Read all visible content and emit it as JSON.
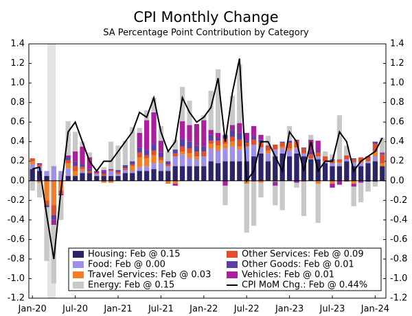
{
  "chart_data": {
    "type": "bar",
    "title": "CPI Monthly Change",
    "subtitle": "SA Percentage Point Contribution by Category",
    "categories": [
      "Jan-20",
      null,
      null,
      null,
      null,
      null,
      "Jul-20",
      null,
      null,
      null,
      null,
      null,
      "Jan-21",
      null,
      null,
      null,
      null,
      null,
      "Jul-21",
      null,
      null,
      null,
      null,
      null,
      "Jan-22",
      null,
      null,
      null,
      null,
      null,
      "Jul-22",
      null,
      null,
      null,
      null,
      null,
      "Jan-23",
      null,
      null,
      null,
      null,
      null,
      "Jul-23",
      null,
      null,
      null,
      null,
      null,
      "Jan-24",
      null
    ],
    "ylim": [
      -1.2,
      1.4
    ],
    "yticks": [
      {
        "value": -1.2,
        "label": "-1.2"
      },
      {
        "value": -1.0,
        "label": "-1.0"
      },
      -0.8,
      -0.6,
      -0.4,
      -0.2,
      {
        "value": 0,
        "label": "0.0"
      },
      0.2,
      0.4,
      0.6,
      0.8,
      {
        "value": 1.0,
        "label": "1.0"
      },
      1.2,
      1.4
    ],
    "stacked": true,
    "series": [
      {
        "name": "Housing: Feb @ 0.15",
        "color": "#2b2466",
        "values": [
          0.12,
          0.1,
          0.05,
          0.0,
          0.0,
          0.05,
          0.05,
          0.08,
          0.08,
          0.05,
          0.05,
          0.05,
          0.05,
          0.08,
          0.08,
          0.1,
          0.1,
          0.12,
          0.1,
          0.1,
          0.15,
          0.15,
          0.15,
          0.15,
          0.15,
          0.2,
          0.18,
          0.2,
          0.2,
          0.2,
          0.2,
          0.25,
          0.28,
          0.2,
          0.25,
          0.28,
          0.25,
          0.28,
          0.25,
          0.22,
          0.22,
          0.18,
          0.15,
          0.15,
          0.2,
          0.15,
          0.15,
          0.18,
          0.2,
          0.15
        ]
      },
      {
        "name": "Food: Feb @ 0.00",
        "color": "#9f8fe8",
        "values": [
          0.05,
          0.05,
          0.05,
          0.15,
          0.1,
          0.08,
          0.0,
          0.02,
          0.0,
          0.02,
          0.0,
          0.05,
          0.02,
          0.03,
          0.02,
          0.04,
          0.05,
          0.06,
          0.08,
          0.05,
          0.1,
          0.12,
          0.08,
          0.07,
          0.1,
          0.13,
          0.13,
          0.13,
          0.15,
          0.12,
          0.15,
          0.12,
          0.06,
          0.08,
          0.07,
          0.05,
          0.06,
          0.05,
          0.03,
          0.01,
          0.03,
          0.02,
          0.03,
          0.03,
          0.02,
          0.04,
          0.03,
          0.02,
          0.05,
          0.0
        ]
      },
      {
        "name": "Travel Services: Feb @ 0.03",
        "color": "#f07f2a",
        "values": [
          0.03,
          -0.02,
          -0.2,
          -0.25,
          -0.1,
          0.05,
          0.05,
          0.02,
          0.0,
          0.0,
          -0.02,
          -0.02,
          0.0,
          0.0,
          0.05,
          0.1,
          0.08,
          0.08,
          0.03,
          -0.03,
          -0.03,
          0.03,
          0.05,
          0.03,
          0.0,
          0.05,
          0.05,
          0.05,
          0.05,
          0.03,
          -0.03,
          -0.01,
          -0.02,
          0.03,
          -0.01,
          0.02,
          0.02,
          0.01,
          -0.01,
          0.0,
          -0.03,
          0.0,
          -0.03,
          0.01,
          -0.01,
          -0.03,
          0.01,
          0.0,
          0.05,
          0.03
        ]
      },
      {
        "name": "Other Services: Feb @ 0.09",
        "color": "#e04f2a",
        "values": [
          0.03,
          0.02,
          -0.05,
          -0.1,
          -0.03,
          0.03,
          0.05,
          0.02,
          0.02,
          0.01,
          0.02,
          0.01,
          0.02,
          0.02,
          0.02,
          0.05,
          0.03,
          0.05,
          0.03,
          0.02,
          0.03,
          0.05,
          0.05,
          0.05,
          0.05,
          0.03,
          0.05,
          0.05,
          0.05,
          0.07,
          0.04,
          0.05,
          0.05,
          0.04,
          0.05,
          0.04,
          0.06,
          0.07,
          0.05,
          0.04,
          0.04,
          0.05,
          0.03,
          0.03,
          0.04,
          0.03,
          0.05,
          0.04,
          0.08,
          0.09
        ]
      },
      {
        "name": "Other Goods: Feb @ 0.01",
        "color": "#5b3fa6",
        "values": [
          0.0,
          0.01,
          -0.02,
          -0.05,
          0.0,
          0.03,
          0.05,
          0.03,
          0.02,
          0.0,
          0.02,
          0.01,
          0.02,
          0.03,
          0.03,
          0.05,
          0.06,
          0.07,
          0.05,
          0.03,
          0.04,
          0.08,
          0.07,
          0.06,
          0.05,
          0.06,
          0.03,
          0.04,
          0.07,
          0.07,
          0.02,
          0.04,
          0.03,
          0.01,
          -0.01,
          0.01,
          0.02,
          0.01,
          0.01,
          0.03,
          0.02,
          0.0,
          0.01,
          0.0,
          0.0,
          0.01,
          0.0,
          -0.01,
          0.02,
          0.01
        ]
      },
      {
        "name": "Vehicles: Feb @ 0.01",
        "color": "#a8209c",
        "values": [
          0.0,
          0.0,
          0.0,
          -0.05,
          -0.02,
          0.02,
          0.1,
          0.18,
          0.12,
          0.02,
          0.02,
          0.0,
          0.0,
          0.0,
          0.0,
          0.15,
          0.3,
          0.32,
          0.12,
          0.0,
          -0.02,
          0.18,
          0.17,
          0.22,
          0.27,
          0.05,
          0.05,
          -0.05,
          0.05,
          0.1,
          0.08,
          0.1,
          0.05,
          0.0,
          -0.03,
          0.0,
          0.0,
          -0.02,
          0.0,
          0.12,
          0.1,
          0.0,
          -0.04,
          -0.04,
          0.0,
          -0.03,
          -0.02,
          0.01,
          -0.01,
          0.01
        ]
      },
      {
        "name": "Energy: Feb @ 0.15",
        "color": "#c8c8c8",
        "values": [
          -0.1,
          -0.15,
          -0.55,
          -0.6,
          -0.25,
          0.35,
          0.2,
          0.05,
          0.05,
          0.0,
          0.03,
          0.28,
          0.25,
          0.25,
          0.35,
          0.05,
          0.1,
          0.15,
          0.15,
          0.1,
          0.1,
          0.35,
          0.25,
          0.0,
          0.05,
          0.4,
          0.65,
          -0.2,
          0.3,
          0.6,
          -0.5,
          -0.45,
          -0.15,
          0.1,
          -0.2,
          -0.3,
          0.15,
          -0.05,
          -0.35,
          0.05,
          -0.4,
          0.05,
          0.05,
          0.45,
          0.1,
          -0.2,
          -0.2,
          -0.1,
          -0.05,
          0.15
        ]
      },
      {
        "name": "CPI MoM Chg.: Feb @ 0.44%",
        "color": "#000000",
        "type": "line",
        "values": [
          0.12,
          0.14,
          -0.35,
          -0.8,
          -0.1,
          0.5,
          0.6,
          0.4,
          0.2,
          0.1,
          0.2,
          0.2,
          0.3,
          0.4,
          0.5,
          0.7,
          0.65,
          0.85,
          0.5,
          0.3,
          0.4,
          0.85,
          0.7,
          0.6,
          0.65,
          0.75,
          1.05,
          0.4,
          0.9,
          1.25,
          0.0,
          0.1,
          0.4,
          0.4,
          0.25,
          0.1,
          0.5,
          0.4,
          0.1,
          0.4,
          0.1,
          0.2,
          0.2,
          0.5,
          0.4,
          0.1,
          0.2,
          0.25,
          0.3,
          0.44
        ]
      }
    ]
  }
}
